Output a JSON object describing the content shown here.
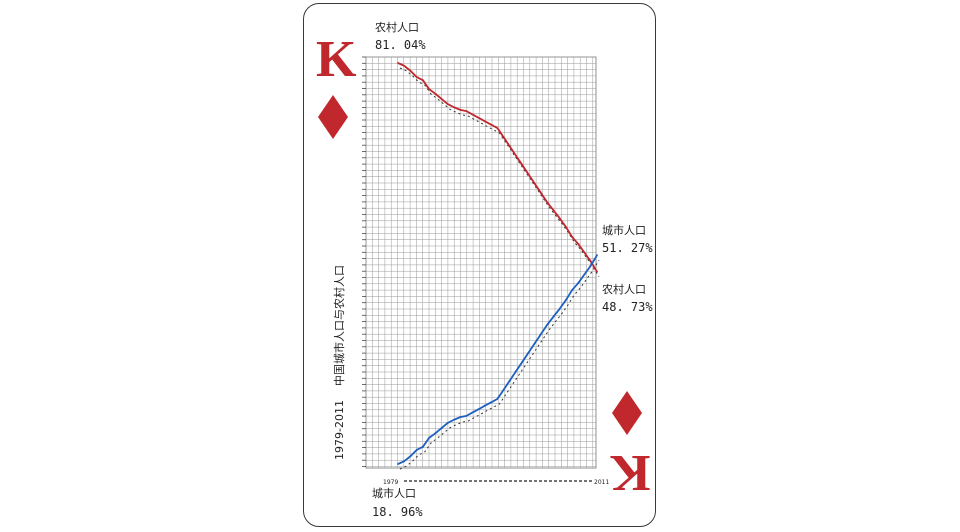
{
  "card": {
    "rank": "K",
    "suit_color": "#c0282d",
    "suit_icon": "diamond-icon"
  },
  "labels": {
    "rural_top": "农村人口",
    "rural_top_pct": "81. 04%",
    "urban_right": "城市人口",
    "urban_right_pct": "51. 27%",
    "rural_right": "农村人口",
    "rural_right_pct": "48. 73%",
    "urban_bottom": "城市人口",
    "urban_bottom_pct": "18. 96%",
    "vertical_title": "中国城市人口与农村人口",
    "vertical_years": "1979-2011",
    "x_start": "1979",
    "x_end": "2011"
  },
  "chart_data": {
    "type": "line",
    "x": [
      1979,
      1980,
      1981,
      1982,
      1983,
      1984,
      1985,
      1986,
      1987,
      1988,
      1989,
      1990,
      1991,
      1992,
      1993,
      1994,
      1995,
      1996,
      1997,
      1998,
      1999,
      2000,
      2001,
      2002,
      2003,
      2004,
      2005,
      2006,
      2007,
      2008,
      2009,
      2010,
      2011
    ],
    "xlim": [
      1979,
      2011
    ],
    "ylim": [
      0,
      100
    ],
    "grid": true,
    "series": [
      {
        "name": "农村人口",
        "color": "#c0282d",
        "values": [
          81.04,
          80.61,
          79.84,
          78.87,
          78.38,
          76.99,
          76.29,
          75.48,
          74.68,
          74.19,
          73.79,
          73.59,
          73.06,
          72.54,
          71.99,
          71.49,
          70.96,
          69.52,
          68.09,
          66.65,
          65.22,
          63.78,
          62.34,
          60.91,
          59.47,
          58.24,
          57.01,
          55.66,
          54.11,
          53.01,
          51.66,
          50.32,
          48.73
        ]
      },
      {
        "name": "城市人口",
        "color": "#1d5fbf",
        "values": [
          18.96,
          19.39,
          20.16,
          21.13,
          21.62,
          23.01,
          23.71,
          24.52,
          25.32,
          25.81,
          26.21,
          26.41,
          26.94,
          27.46,
          28.01,
          28.51,
          29.04,
          30.48,
          31.91,
          33.35,
          34.78,
          36.22,
          37.66,
          39.09,
          40.53,
          41.76,
          42.99,
          44.34,
          45.89,
          46.99,
          48.34,
          49.68,
          51.27
        ]
      }
    ]
  }
}
